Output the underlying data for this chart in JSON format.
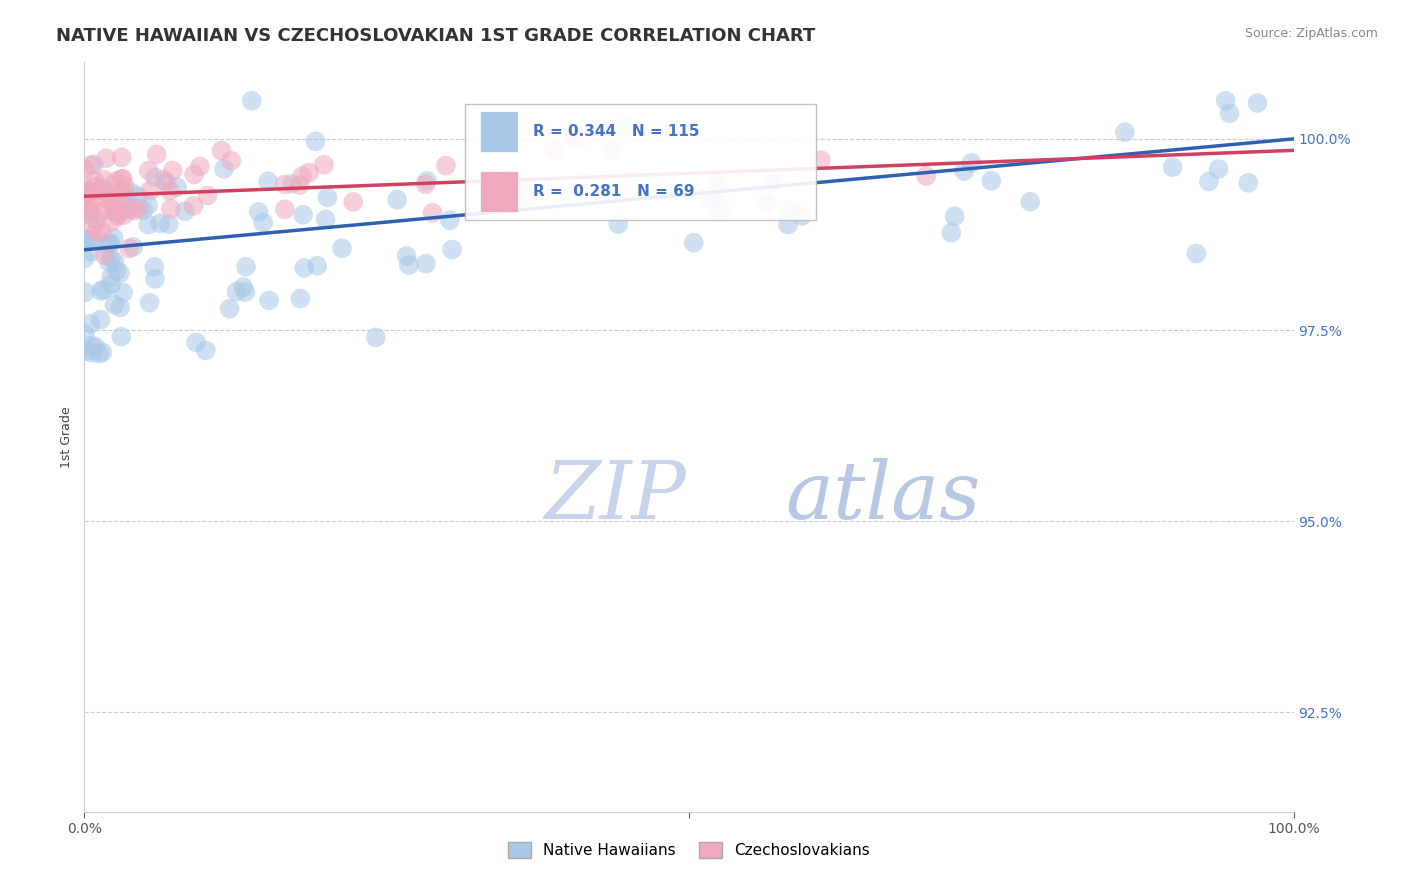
{
  "title": "NATIVE HAWAIIAN VS CZECHOSLOVAKIAN 1ST GRADE CORRELATION CHART",
  "source": "Source: ZipAtlas.com",
  "ylabel": "1st Grade",
  "y_ticks": [
    92.5,
    95.0,
    97.5,
    100.0
  ],
  "y_tick_labels": [
    "92.5%",
    "95.0%",
    "97.5%",
    "100.0%"
  ],
  "xlim": [
    0.0,
    100.0
  ],
  "ylim": [
    91.2,
    101.0
  ],
  "r_blue": 0.344,
  "n_blue": 115,
  "r_pink": 0.281,
  "n_pink": 69,
  "blue_color": "#A8C8E8",
  "pink_color": "#F0A8BC",
  "blue_line_color": "#3060B0",
  "pink_line_color": "#D04060",
  "watermark_zip_color": "#C8D8F0",
  "watermark_atlas_color": "#B8CCE8",
  "legend_label_blue": "Native Hawaiians",
  "legend_label_pink": "Czechoslovakians",
  "background_color": "#FFFFFF",
  "grid_color": "#CCCCCC",
  "ytick_color": "#4472C4",
  "title_fontsize": 13,
  "axis_label_fontsize": 9,
  "tick_fontsize": 10,
  "blue_line_start_y": 98.55,
  "blue_line_end_y": 100.0,
  "pink_line_start_y": 99.25,
  "pink_line_end_y": 99.85
}
